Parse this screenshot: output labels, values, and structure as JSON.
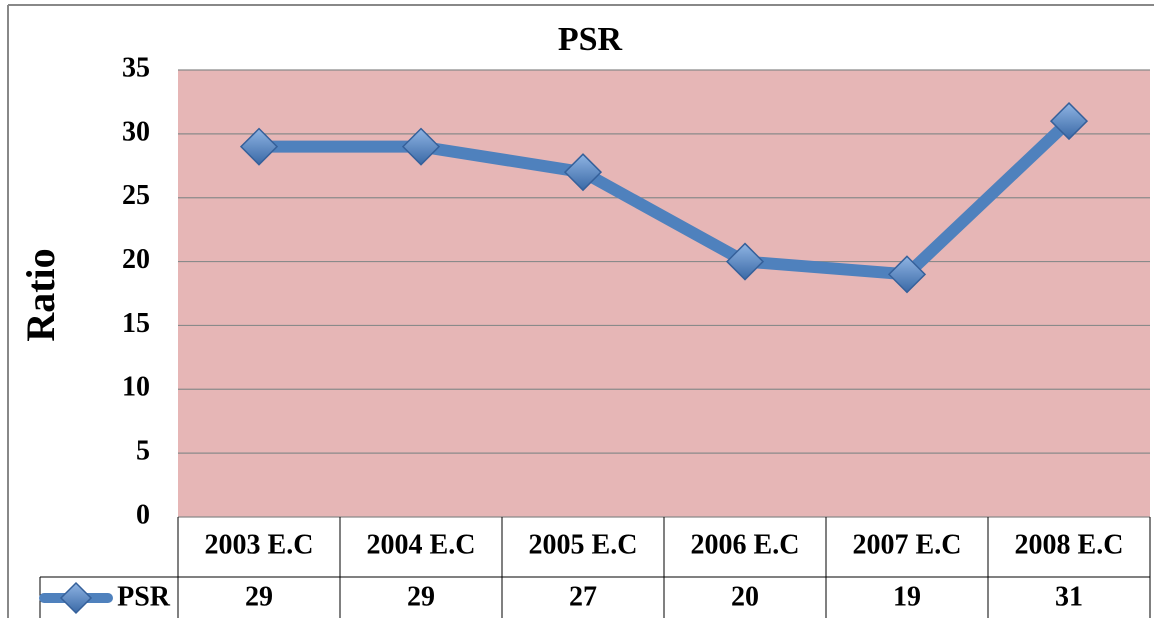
{
  "chart_data": {
    "type": "line",
    "title": "PSR",
    "y_label": "Ratio",
    "categories": [
      "2003 E.C",
      "2004 E.C",
      "2005 E.C",
      "2006 E.C",
      "2007 E.C",
      "2008 E.C"
    ],
    "series": [
      {
        "name": "PSR",
        "color": "#4f81bd",
        "values": [
          29,
          29,
          27,
          20,
          19,
          31
        ]
      }
    ],
    "ylim": [
      0,
      35
    ],
    "yticks": [
      0,
      5,
      10,
      15,
      20,
      25,
      30,
      35
    ],
    "grid": true,
    "plot_background": "#e6b6b6"
  }
}
